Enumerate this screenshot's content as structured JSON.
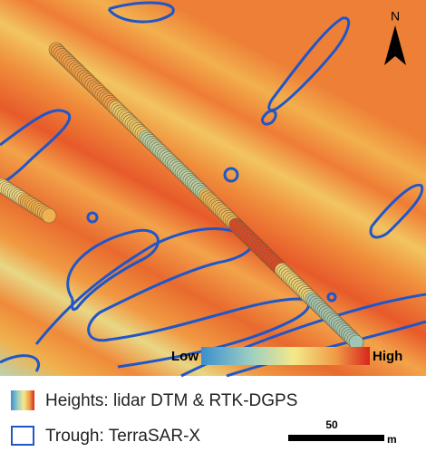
{
  "map": {
    "north_label": "N",
    "colorbar": {
      "low": "Low",
      "high": "High"
    }
  },
  "legend": {
    "heights": "Heights: lidar DTM & RTK-DGPS",
    "trough": "Trough: TerraSAR-X"
  },
  "scale_bar": {
    "distance": "50",
    "unit": "m"
  }
}
